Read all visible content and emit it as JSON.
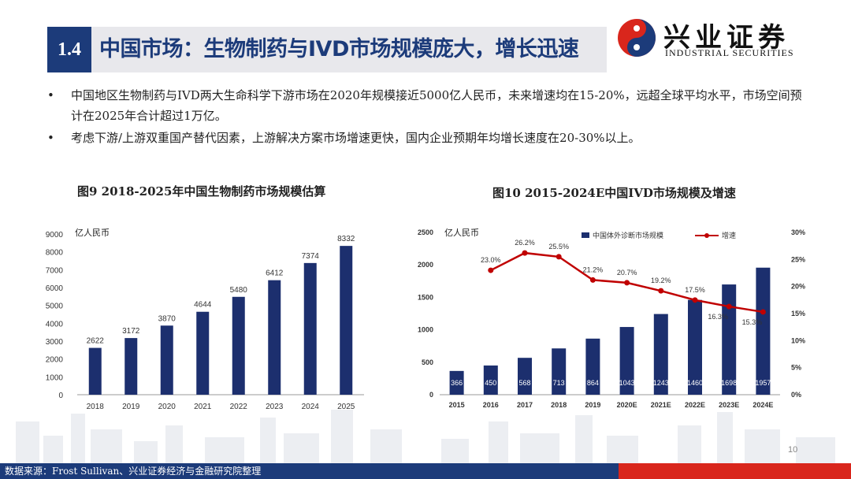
{
  "header": {
    "section_num": "1.4",
    "title": "中国市场：生物制药与IVD市场规模庞大，增长迅速"
  },
  "logo": {
    "name_cn": "兴业证券",
    "name_en": "INDUSTRIAL SECURITIES",
    "icon": "industrial-securities-logo-icon"
  },
  "bullets": [
    {
      "dot": "•",
      "text": "中国地区生物制药与IVD两大生命科学下游市场在2020年规模接近5000亿人民币，未来增速均在15-20%，远超全球平均水平，市场空间预计在2025年合计超过1万亿。"
    },
    {
      "dot": "•",
      "text": "考虑下游/上游双重国产替代因素，上游解决方案市场增速更快，国内企业预期年均增长速度在20-30%以上。"
    }
  ],
  "colors": {
    "navy": "#1c3b7a",
    "red": "#d9261c",
    "bar": "#1c2f6e",
    "line": "#c00000"
  },
  "footer": {
    "source": "数据来源：Frost Sullivan、兴业证券经济与金融研究院整理",
    "page": "10"
  },
  "chart_data": [
    {
      "type": "bar",
      "title": "图9 2018-2025年中国生物制药市场规模估算",
      "unit_label": "亿人民币",
      "categories": [
        "2018",
        "2019",
        "2020",
        "2021",
        "2022",
        "2023",
        "2024",
        "2025"
      ],
      "values": [
        2622,
        3172,
        3870,
        4644,
        5480,
        6412,
        7374,
        8332
      ],
      "y_ticks": [
        "0",
        "1000",
        "2000",
        "3000",
        "4000",
        "5000",
        "6000",
        "7000",
        "8000",
        "9000"
      ],
      "ylim": [
        0,
        9000
      ],
      "grid": false
    },
    {
      "type": "bar+line",
      "title": "图10 2015-2024E中国IVD市场规模及增速",
      "unit_label": "亿人民币",
      "legend": [
        "中国体外诊断市场规模",
        "增速"
      ],
      "legend_position": "top",
      "categories": [
        "2015",
        "2016",
        "2017",
        "2018",
        "2019",
        "2020E",
        "2021E",
        "2022E",
        "2023E",
        "2024E"
      ],
      "bar_values": [
        366,
        450,
        568,
        713,
        864,
        1043,
        1243,
        1460,
        1698,
        1957
      ],
      "growth_x": [
        "2016",
        "2017",
        "2018",
        "2019",
        "2020E",
        "2021E",
        "2022E",
        "2023E",
        "2024E"
      ],
      "growth_values": [
        23.0,
        26.2,
        25.5,
        21.2,
        20.7,
        19.2,
        17.5,
        16.3,
        15.3
      ],
      "growth_labels": [
        "23.0%",
        "26.2%",
        "25.5%",
        "21.2%",
        "20.7%",
        "19.2%",
        "17.5%",
        "16.3%",
        "15.3%"
      ],
      "y_left_ticks": [
        "0",
        "500",
        "1000",
        "1500",
        "2000",
        "2500"
      ],
      "y_right_ticks": [
        "0%",
        "5%",
        "10%",
        "15%",
        "20%",
        "25%",
        "30%"
      ],
      "ylim_left": [
        0,
        2500
      ],
      "ylim_right": [
        0,
        30
      ],
      "grid": false
    }
  ]
}
